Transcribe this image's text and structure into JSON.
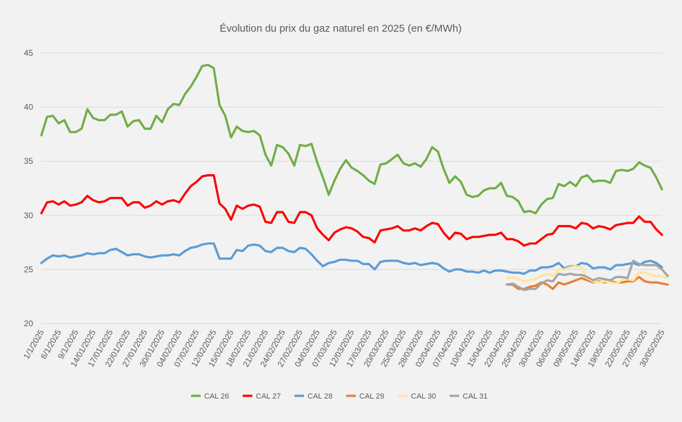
{
  "chart_data": {
    "type": "line",
    "title": "Évolution du prix du gaz naturel en 2025 (en €/MWh)",
    "ylim": [
      20,
      45
    ],
    "yticks": [
      20,
      25,
      30,
      35,
      40,
      45
    ],
    "grid": true,
    "legend_position": "bottom",
    "x_tick_labels": [
      "1/1/2025",
      "6/1/2025",
      "9/1/2025",
      "14/01/2025",
      "17/01/2025",
      "22/01/2025",
      "27/01/2025",
      "30/01/2025",
      "04/02/2025",
      "07/02/2025",
      "12/02/2025",
      "15/02/2025",
      "18/02/2025",
      "21/02/2025",
      "24/02/2025",
      "27/02/2025",
      "04/03/2025",
      "07/03/2025",
      "12/03/2025",
      "17/03/2025",
      "20/03/2025",
      "25/03/2025",
      "28/03/2025",
      "02/04/2025",
      "07/04/2025",
      "10/04/2025",
      "15/04/2025",
      "22/04/2025",
      "25/04/2025",
      "30/04/2025",
      "06/05/2025",
      "09/05/2025",
      "14/05/2025",
      "19/05/2025",
      "22/05/2025",
      "27/05/2025",
      "30/05/2025"
    ],
    "series": [
      {
        "name": "CAL 26",
        "color": "#70ad47",
        "start_index": 0,
        "values": [
          37.4,
          39.1,
          39.2,
          38.5,
          38.8,
          37.7,
          37.7,
          38.0,
          39.8,
          39.0,
          38.8,
          38.8,
          39.3,
          39.3,
          39.6,
          38.2,
          38.7,
          38.8,
          38.0,
          38.0,
          39.2,
          38.6,
          39.8,
          40.3,
          40.2,
          41.2,
          41.9,
          42.8,
          43.8,
          43.9,
          43.6,
          40.2,
          39.2,
          37.2,
          38.2,
          37.8,
          37.7,
          37.8,
          37.4,
          35.6,
          34.6,
          36.5,
          36.3,
          35.7,
          34.6,
          36.5,
          36.4,
          36.6,
          34.9,
          33.5,
          31.9,
          33.2,
          34.3,
          35.1,
          34.4,
          34.1,
          33.7,
          33.2,
          32.9,
          34.7,
          34.8,
          35.2,
          35.6,
          34.8,
          34.6,
          34.8,
          34.5,
          35.2,
          36.3,
          35.9,
          34.3,
          33.0,
          33.6,
          33.1,
          31.9,
          31.7,
          31.8,
          32.3,
          32.5,
          32.5,
          33.0,
          31.8,
          31.7,
          31.3,
          30.3,
          30.4,
          30.2,
          31.0,
          31.5,
          31.6,
          32.9,
          32.7,
          33.1,
          32.7,
          33.5,
          33.7,
          33.1,
          33.2,
          33.2,
          33.0,
          34.1,
          34.2,
          34.1,
          34.3,
          34.9,
          34.6,
          34.4,
          33.5,
          32.4
        ]
      },
      {
        "name": "CAL 27",
        "color": "#ff0000",
        "start_index": 0,
        "values": [
          30.2,
          31.2,
          31.3,
          31.0,
          31.3,
          30.9,
          31.0,
          31.2,
          31.8,
          31.4,
          31.2,
          31.3,
          31.6,
          31.6,
          31.6,
          30.9,
          31.2,
          31.2,
          30.7,
          30.9,
          31.3,
          31.0,
          31.3,
          31.4,
          31.2,
          32.0,
          32.7,
          33.1,
          33.6,
          33.7,
          33.7,
          31.1,
          30.6,
          29.6,
          30.9,
          30.6,
          30.9,
          31.0,
          30.8,
          29.4,
          29.3,
          30.3,
          30.3,
          29.4,
          29.3,
          30.3,
          30.3,
          30.0,
          28.8,
          28.2,
          27.7,
          28.4,
          28.7,
          28.9,
          28.8,
          28.5,
          28.0,
          27.9,
          27.5,
          28.6,
          28.7,
          28.8,
          29.0,
          28.6,
          28.6,
          28.8,
          28.6,
          29.0,
          29.3,
          29.2,
          28.4,
          27.8,
          28.4,
          28.3,
          27.8,
          28.0,
          28.0,
          28.1,
          28.2,
          28.2,
          28.4,
          27.8,
          27.8,
          27.6,
          27.2,
          27.4,
          27.4,
          27.8,
          28.2,
          28.3,
          29.0,
          29.0,
          29.0,
          28.8,
          29.3,
          29.2,
          28.8,
          29.0,
          28.9,
          28.7,
          29.1,
          29.2,
          29.3,
          29.3,
          29.9,
          29.4,
          29.4,
          28.7,
          28.2
        ]
      },
      {
        "name": "CAL 28",
        "color": "#5b9bd5",
        "start_index": 0,
        "values": [
          25.6,
          26.0,
          26.3,
          26.2,
          26.3,
          26.1,
          26.2,
          26.3,
          26.5,
          26.4,
          26.5,
          26.5,
          26.8,
          26.9,
          26.6,
          26.3,
          26.4,
          26.4,
          26.2,
          26.1,
          26.2,
          26.3,
          26.3,
          26.4,
          26.3,
          26.7,
          27.0,
          27.1,
          27.3,
          27.4,
          27.4,
          26.0,
          26.0,
          26.0,
          26.8,
          26.7,
          27.2,
          27.3,
          27.2,
          26.7,
          26.6,
          27.0,
          27.0,
          26.7,
          26.6,
          27.0,
          26.9,
          26.4,
          25.8,
          25.3,
          25.6,
          25.7,
          25.9,
          25.9,
          25.8,
          25.8,
          25.5,
          25.5,
          25.0,
          25.7,
          25.8,
          25.8,
          25.8,
          25.6,
          25.5,
          25.6,
          25.4,
          25.5,
          25.6,
          25.5,
          25.1,
          24.8,
          25.0,
          25.0,
          24.8,
          24.8,
          24.7,
          24.9,
          24.7,
          24.9,
          24.9,
          24.8,
          24.7,
          24.7,
          24.6,
          24.9,
          24.9,
          25.2,
          25.2,
          25.3,
          25.6,
          25.1,
          25.3,
          25.3,
          25.6,
          25.5,
          25.1,
          25.2,
          25.2,
          25.0,
          25.4,
          25.4,
          25.5,
          25.6,
          25.4,
          25.7,
          25.8,
          25.6,
          25.2
        ]
      },
      {
        "name": "CAL 29",
        "color": "#ed7d31",
        "start_index": 81,
        "values": [
          23.6,
          23.6,
          23.2,
          23.2,
          23.4,
          23.5,
          23.8,
          23.6,
          23.2,
          23.8,
          23.6,
          23.8,
          24.0,
          24.2,
          24.0,
          23.8,
          23.9,
          23.8,
          23.9,
          23.8,
          23.8,
          23.9,
          23.9,
          24.3,
          23.9,
          23.8,
          23.8,
          23.7,
          23.6
        ]
      },
      {
        "name": "CAL 30",
        "color": "#ffe699",
        "start_index": 81,
        "values": [
          24.2,
          24.3,
          24.1,
          23.9,
          24.0,
          24.1,
          24.4,
          24.6,
          24.4,
          25.0,
          25.0,
          25.2,
          25.3,
          25.2,
          24.2,
          23.9,
          23.8,
          23.9,
          23.8,
          23.7,
          24.0,
          24.1,
          24.0,
          24.7,
          24.7,
          24.5,
          24.4,
          24.4,
          24.2
        ]
      },
      {
        "name": "CAL 31",
        "color": "#a5a5a5",
        "start_index": 81,
        "values": [
          23.6,
          23.7,
          23.4,
          23.1,
          23.2,
          23.2,
          23.7,
          24.0,
          23.9,
          24.6,
          24.5,
          24.6,
          24.5,
          24.5,
          24.3,
          24.0,
          24.2,
          24.1,
          24.0,
          24.3,
          24.3,
          24.2,
          25.8,
          25.5,
          25.4,
          25.4,
          25.4,
          25.0,
          24.4
        ]
      }
    ]
  }
}
